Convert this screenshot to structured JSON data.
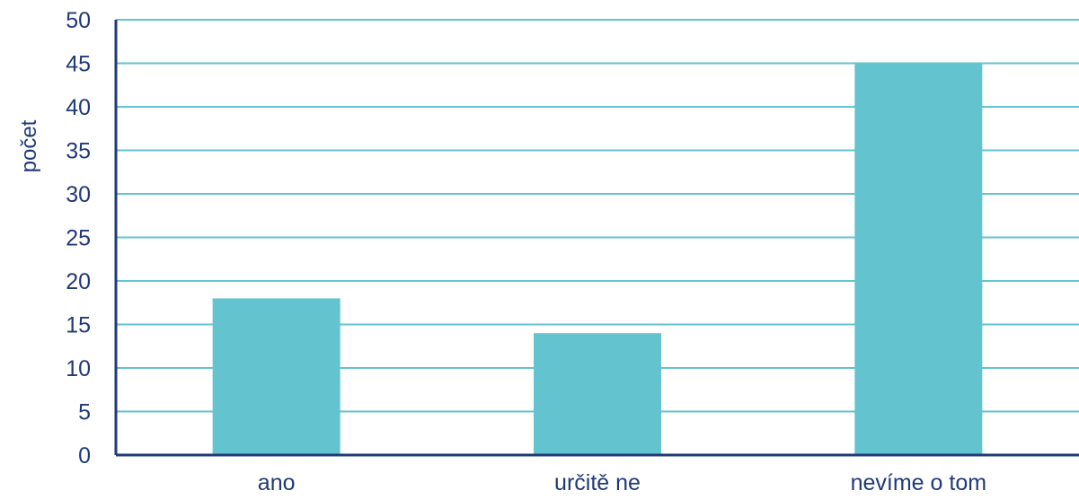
{
  "chart_data": {
    "type": "bar",
    "categories": [
      "ano",
      "určitě ne",
      "nevíme o tom"
    ],
    "values": [
      18,
      14,
      45
    ],
    "title": "",
    "xlabel": "",
    "ylabel": "počet",
    "ylim": [
      0,
      50
    ],
    "yticks": [
      0,
      5,
      10,
      15,
      20,
      25,
      30,
      35,
      40,
      45,
      50
    ],
    "grid": true,
    "legend": "none",
    "colors": {
      "bar": "#63c3cf",
      "grid": "#63c3cf",
      "axis": "#1f3a78",
      "text": "#1f3a78"
    }
  }
}
